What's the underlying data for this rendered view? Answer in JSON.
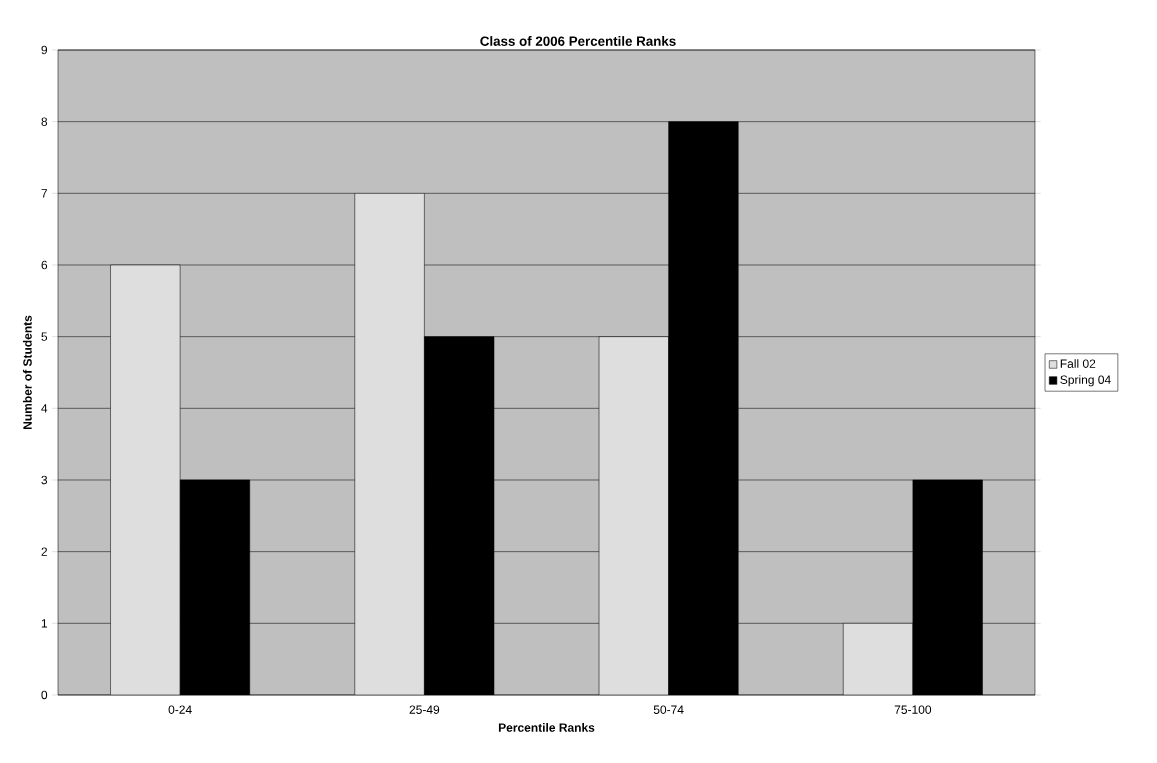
{
  "chart_data": {
    "type": "bar",
    "title": "Class of 2006 Percentile Ranks",
    "xlabel": "Percentile Ranks",
    "ylabel": "Number of Students",
    "categories": [
      "0-24",
      "25-49",
      "50-74",
      "75-100"
    ],
    "series": [
      {
        "name": "Fall 02",
        "color": "#dedede",
        "values": [
          6,
          7,
          5,
          1
        ]
      },
      {
        "name": "Spring 04",
        "color": "#000000",
        "values": [
          3,
          5,
          8,
          3
        ]
      }
    ],
    "ylim": [
      0,
      9
    ],
    "yticks": [
      0,
      1,
      2,
      3,
      4,
      5,
      6,
      7,
      8,
      9
    ],
    "grid": "y",
    "legend": "right"
  }
}
